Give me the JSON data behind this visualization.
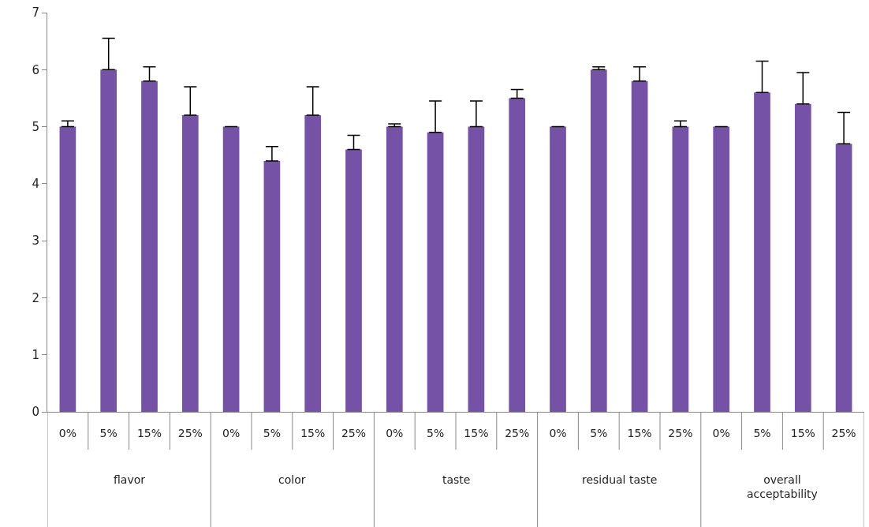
{
  "chart_data": {
    "type": "bar",
    "categories": [
      "0%",
      "5%",
      "15%",
      "25%",
      "0%",
      "5%",
      "15%",
      "25%",
      "0%",
      "5%",
      "15%",
      "25%",
      "0%",
      "5%",
      "15%",
      "25%",
      "0%",
      "5%",
      "15%",
      "25%"
    ],
    "values": [
      5.0,
      6.0,
      5.8,
      5.2,
      5.0,
      4.4,
      5.2,
      4.6,
      5.0,
      4.9,
      5.0,
      5.5,
      5.0,
      6.0,
      5.8,
      5.0,
      5.0,
      5.6,
      5.4,
      4.7
    ],
    "errors": [
      [
        5.0,
        5.1
      ],
      [
        6.0,
        6.55
      ],
      [
        5.8,
        6.05
      ],
      [
        5.2,
        5.7
      ],
      [
        5.0,
        5.0
      ],
      [
        4.4,
        4.65
      ],
      [
        5.2,
        5.7
      ],
      [
        4.6,
        4.85
      ],
      [
        5.0,
        5.05
      ],
      [
        4.9,
        5.45
      ],
      [
        5.0,
        5.45
      ],
      [
        5.5,
        5.65
      ],
      [
        5.0,
        5.0
      ],
      [
        6.0,
        6.05
      ],
      [
        5.8,
        6.05
      ],
      [
        5.0,
        5.1
      ],
      [
        5.0,
        5.0
      ],
      [
        5.6,
        6.15
      ],
      [
        5.4,
        5.95
      ],
      [
        4.7,
        5.25
      ]
    ],
    "color": "#7652a6",
    "annotations": [
      "flavor",
      "color",
      "taste",
      "residual taste",
      "overall acceptability"
    ],
    "ylim": [
      0,
      7
    ],
    "yticks": [
      0,
      1,
      2,
      3,
      4,
      5,
      6,
      7
    ]
  }
}
